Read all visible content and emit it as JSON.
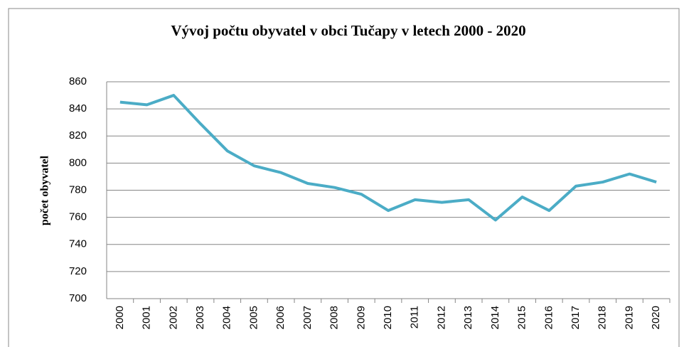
{
  "chart_data": {
    "type": "line",
    "title": "Vývoj počtu obyvatel v obci Tučapy v letech 2000 - 2020",
    "y_label": "počet obyvatel",
    "categories": [
      "2000",
      "2001",
      "2002",
      "2003",
      "2004",
      "2005",
      "2006",
      "2007",
      "2008",
      "2009",
      "2010",
      "2011",
      "2012",
      "2013",
      "2014",
      "2015",
      "2016",
      "2017",
      "2018",
      "2019",
      "2020"
    ],
    "series": [
      {
        "name": "počet obyvatel",
        "color": "#4bacc6",
        "values": [
          845,
          843,
          850,
          829,
          809,
          798,
          793,
          785,
          782,
          777,
          765,
          773,
          771,
          773,
          758,
          775,
          765,
          783,
          786,
          792,
          786
        ]
      }
    ],
    "ylim": [
      700,
      860
    ],
    "yticks": [
      700,
      720,
      740,
      760,
      780,
      800,
      820,
      840,
      860
    ],
    "grid": true
  }
}
